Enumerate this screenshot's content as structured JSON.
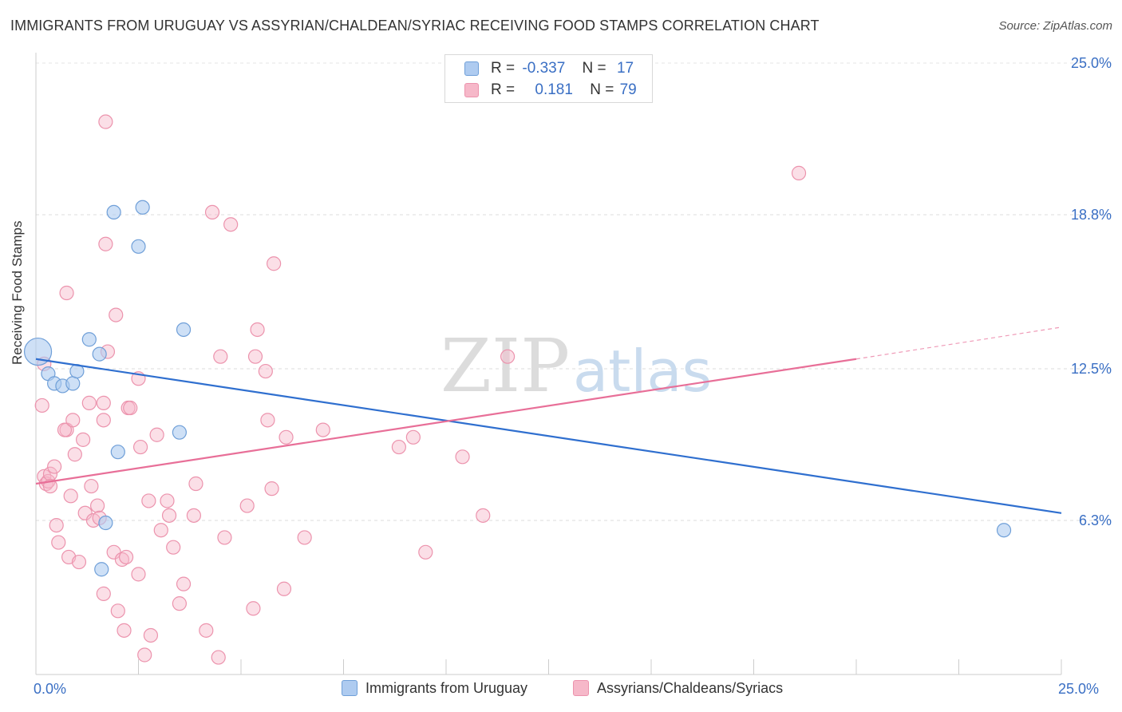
{
  "header": {
    "title": "IMMIGRANTS FROM URUGUAY VS ASSYRIAN/CHALDEAN/SYRIAC RECEIVING FOOD STAMPS CORRELATION CHART",
    "source": "Source: ZipAtlas.com"
  },
  "watermark": {
    "zip": "ZIP",
    "atlas": "atlas"
  },
  "legend_top": {
    "rows": [
      {
        "r_label": "R =",
        "r_value": "-0.337",
        "n_label": "N =",
        "n_value": "17",
        "color": "#aecbf0"
      },
      {
        "r_label": "R =",
        "r_value": "0.181",
        "n_label": "N =",
        "n_value": "79",
        "color": "#f6b8c9"
      }
    ]
  },
  "bottom_legend": {
    "series1": "Immigrants from Uruguay",
    "series2": "Assyrians/Chaldeans/Syriacs"
  },
  "chart_data": {
    "type": "scatter",
    "title": "IMMIGRANTS FROM URUGUAY VS ASSYRIAN/CHALDEAN/SYRIAC RECEIVING FOOD STAMPS CORRELATION CHART",
    "xlabel": "",
    "ylabel": "Receiving Food Stamps",
    "xlim": [
      0,
      25
    ],
    "ylim": [
      0,
      25
    ],
    "x_tick_labels": {
      "min": "0.0%",
      "max": "25.0%"
    },
    "y_ticks": [
      {
        "value": 25.0,
        "label": "25.0%"
      },
      {
        "value": 18.8,
        "label": "18.8%"
      },
      {
        "value": 12.5,
        "label": "12.5%"
      },
      {
        "value": 6.3,
        "label": "6.3%"
      }
    ],
    "grid": true,
    "legend_position": "top-center",
    "colors": {
      "series1_fill": "#aecbf0",
      "series1_stroke": "#6f9fd8",
      "series1_line": "#2f6fcf",
      "series2_fill": "#f6b8c9",
      "series2_stroke": "#ec93ad",
      "series2_line": "#e86f98"
    },
    "series": [
      {
        "name": "Immigrants from Uruguay",
        "r": -0.337,
        "n": 17,
        "trend": {
          "x0": 0,
          "y0": 12.9,
          "x1": 25,
          "y1": 6.6
        },
        "points": [
          {
            "x": 0.05,
            "y": 13.2,
            "big": true
          },
          {
            "x": 0.3,
            "y": 12.3
          },
          {
            "x": 0.45,
            "y": 11.9
          },
          {
            "x": 0.65,
            "y": 11.8
          },
          {
            "x": 0.9,
            "y": 11.9
          },
          {
            "x": 1.0,
            "y": 12.4
          },
          {
            "x": 1.3,
            "y": 13.7
          },
          {
            "x": 1.55,
            "y": 13.1
          },
          {
            "x": 1.9,
            "y": 18.9
          },
          {
            "x": 2.6,
            "y": 19.1
          },
          {
            "x": 2.5,
            "y": 17.5
          },
          {
            "x": 3.6,
            "y": 14.1
          },
          {
            "x": 3.5,
            "y": 9.9
          },
          {
            "x": 2.0,
            "y": 9.1
          },
          {
            "x": 1.7,
            "y": 6.2
          },
          {
            "x": 1.6,
            "y": 4.3
          },
          {
            "x": 23.6,
            "y": 5.9
          }
        ]
      },
      {
        "name": "Assyrians/Chaldeans/Syriacs",
        "r": 0.181,
        "n": 79,
        "trend": {
          "x0": 0,
          "y0": 7.8,
          "x1": 20,
          "y1": 12.9
        },
        "trend_dashed": {
          "x0": 20,
          "y0": 12.9,
          "x1": 25,
          "y1": 14.2
        },
        "points": [
          {
            "x": 0.2,
            "y": 12.7
          },
          {
            "x": 0.15,
            "y": 11.0
          },
          {
            "x": 0.2,
            "y": 8.1
          },
          {
            "x": 0.25,
            "y": 7.8
          },
          {
            "x": 0.3,
            "y": 7.9
          },
          {
            "x": 0.35,
            "y": 8.2
          },
          {
            "x": 0.45,
            "y": 8.5
          },
          {
            "x": 0.5,
            "y": 6.1
          },
          {
            "x": 0.55,
            "y": 5.4
          },
          {
            "x": 0.75,
            "y": 10.0
          },
          {
            "x": 0.7,
            "y": 10.0
          },
          {
            "x": 0.75,
            "y": 15.6
          },
          {
            "x": 0.8,
            "y": 4.8
          },
          {
            "x": 0.85,
            "y": 7.3
          },
          {
            "x": 0.9,
            "y": 10.4
          },
          {
            "x": 0.95,
            "y": 9.0
          },
          {
            "x": 1.05,
            "y": 4.6
          },
          {
            "x": 1.15,
            "y": 9.6
          },
          {
            "x": 1.2,
            "y": 6.6
          },
          {
            "x": 1.3,
            "y": 11.1
          },
          {
            "x": 1.35,
            "y": 7.7
          },
          {
            "x": 1.4,
            "y": 6.3
          },
          {
            "x": 1.5,
            "y": 6.9
          },
          {
            "x": 1.55,
            "y": 6.4
          },
          {
            "x": 1.65,
            "y": 3.3
          },
          {
            "x": 1.65,
            "y": 10.4
          },
          {
            "x": 1.65,
            "y": 11.1
          },
          {
            "x": 1.7,
            "y": 22.6
          },
          {
            "x": 1.7,
            "y": 17.6
          },
          {
            "x": 1.75,
            "y": 13.2
          },
          {
            "x": 1.9,
            "y": 5.0
          },
          {
            "x": 1.95,
            "y": 14.7
          },
          {
            "x": 2.0,
            "y": 2.6
          },
          {
            "x": 2.1,
            "y": 4.7
          },
          {
            "x": 2.15,
            "y": 1.8
          },
          {
            "x": 2.2,
            "y": 4.8
          },
          {
            "x": 2.25,
            "y": 10.9
          },
          {
            "x": 2.3,
            "y": 10.9
          },
          {
            "x": 2.5,
            "y": 4.1
          },
          {
            "x": 2.5,
            "y": 12.1
          },
          {
            "x": 2.55,
            "y": 9.3
          },
          {
            "x": 2.65,
            "y": 0.8
          },
          {
            "x": 2.75,
            "y": 7.1
          },
          {
            "x": 2.8,
            "y": 1.6
          },
          {
            "x": 2.95,
            "y": 9.8
          },
          {
            "x": 3.05,
            "y": 5.9
          },
          {
            "x": 3.2,
            "y": 7.1
          },
          {
            "x": 3.25,
            "y": 6.5
          },
          {
            "x": 3.35,
            "y": 5.2
          },
          {
            "x": 3.5,
            "y": 2.9
          },
          {
            "x": 3.6,
            "y": 3.7
          },
          {
            "x": 3.85,
            "y": 6.5
          },
          {
            "x": 3.9,
            "y": 7.8
          },
          {
            "x": 4.15,
            "y": 1.8
          },
          {
            "x": 4.3,
            "y": 18.9
          },
          {
            "x": 4.45,
            "y": 0.7
          },
          {
            "x": 4.5,
            "y": 13.0
          },
          {
            "x": 4.6,
            "y": 5.6
          },
          {
            "x": 4.75,
            "y": 18.4
          },
          {
            "x": 5.15,
            "y": 6.9
          },
          {
            "x": 5.3,
            "y": 2.7
          },
          {
            "x": 5.35,
            "y": 13.0
          },
          {
            "x": 5.4,
            "y": 14.1
          },
          {
            "x": 5.6,
            "y": 12.4
          },
          {
            "x": 5.65,
            "y": 10.4
          },
          {
            "x": 5.75,
            "y": 7.6
          },
          {
            "x": 5.8,
            "y": 16.8
          },
          {
            "x": 6.05,
            "y": 3.5
          },
          {
            "x": 6.1,
            "y": 9.7
          },
          {
            "x": 6.55,
            "y": 5.6
          },
          {
            "x": 7.0,
            "y": 10.0
          },
          {
            "x": 8.85,
            "y": 9.3
          },
          {
            "x": 9.2,
            "y": 9.7
          },
          {
            "x": 9.5,
            "y": 5.0
          },
          {
            "x": 10.4,
            "y": 8.9
          },
          {
            "x": 10.9,
            "y": 6.5
          },
          {
            "x": 11.5,
            "y": 13.0
          },
          {
            "x": 18.6,
            "y": 20.5
          },
          {
            "x": 0.35,
            "y": 7.7
          }
        ]
      }
    ]
  }
}
